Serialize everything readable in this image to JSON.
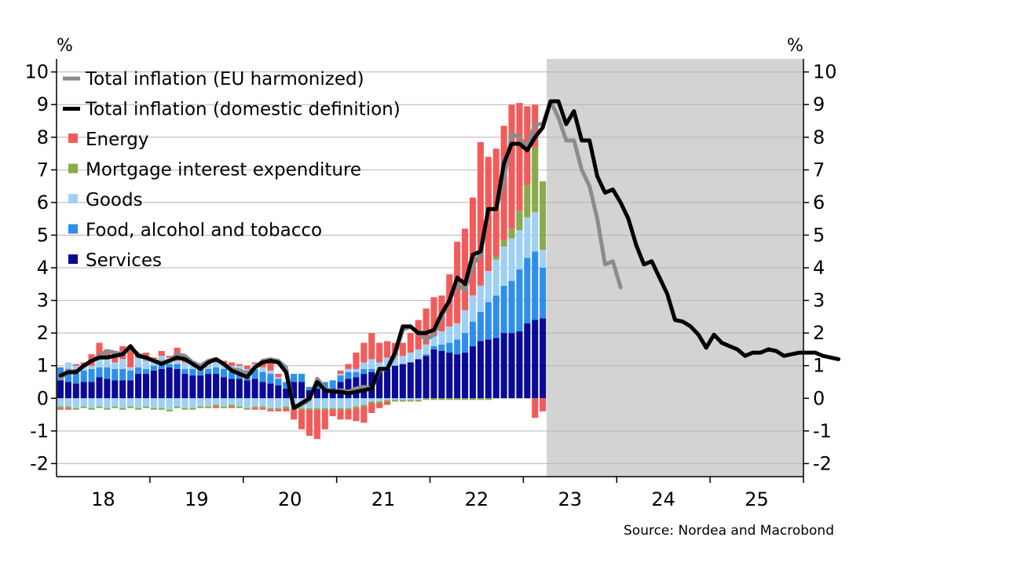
{
  "chart_data": {
    "type": "bar",
    "stacked": true,
    "y_unit_left": "%",
    "y_unit_right": "%",
    "ylim": [
      -2.4,
      10.4
    ],
    "y_ticks": [
      -2,
      -1,
      0,
      1,
      2,
      3,
      4,
      5,
      6,
      7,
      8,
      9,
      10
    ],
    "x_tick_labels": [
      "18",
      "19",
      "20",
      "21",
      "22",
      "23",
      "24",
      "25"
    ],
    "x_range_months": "2018-01 to 2025-12",
    "forecast_shading": {
      "from": "2023-04",
      "to": "2025-12",
      "color": "#d3d3d3"
    },
    "source": "Source: Nordea and Macrobond",
    "legend_position": "top-left",
    "bar_months": "2018-01 to 2023-03 (63 months)",
    "series": [
      {
        "name": "Services",
        "kind": "bar",
        "color": "#0a0a96",
        "values": [
          0.55,
          0.5,
          0.45,
          0.5,
          0.5,
          0.65,
          0.6,
          0.55,
          0.55,
          0.55,
          0.75,
          0.75,
          0.85,
          0.9,
          0.95,
          0.9,
          0.75,
          0.7,
          0.7,
          0.75,
          0.75,
          0.65,
          0.6,
          0.6,
          0.55,
          0.6,
          0.5,
          0.45,
          0.4,
          0.3,
          0.5,
          0.5,
          0.25,
          0.3,
          0.3,
          0.3,
          0.5,
          0.6,
          0.65,
          0.75,
          0.8,
          0.85,
          0.9,
          1.0,
          1.05,
          1.1,
          1.2,
          1.3,
          1.5,
          1.45,
          1.4,
          1.35,
          1.4,
          1.6,
          1.75,
          1.8,
          1.85,
          2.0,
          2.0,
          2.05,
          2.3,
          2.4,
          2.45
        ]
      },
      {
        "name": "Food, alcohol and tobacco",
        "kind": "bar",
        "color": "#2f8fe8",
        "values": [
          0.4,
          0.4,
          0.45,
          0.35,
          0.4,
          0.3,
          0.35,
          0.35,
          0.35,
          0.3,
          0.2,
          0.15,
          0.15,
          0.15,
          0.1,
          0.15,
          0.15,
          0.2,
          0.2,
          0.15,
          0.2,
          0.25,
          0.2,
          0.3,
          0.3,
          0.3,
          0.3,
          0.3,
          0.2,
          0.2,
          0.25,
          0.25,
          0.1,
          0.2,
          0.2,
          0.25,
          0.2,
          0.2,
          0.15,
          0.15,
          0.1,
          0.0,
          0.05,
          0.0,
          0.0,
          0.0,
          0.0,
          0.05,
          0.1,
          0.2,
          0.3,
          0.45,
          0.6,
          0.75,
          0.9,
          1.15,
          1.3,
          1.45,
          1.6,
          1.9,
          2.0,
          2.1,
          1.55
        ]
      },
      {
        "name": "Goods",
        "kind": "bar",
        "color": "#9fd0f5",
        "values": [
          0.0,
          0.2,
          0.1,
          0.1,
          0.1,
          0.3,
          0.35,
          0.2,
          0.3,
          0.1,
          0.3,
          0.25,
          0.2,
          0.25,
          0.2,
          0.1,
          0.2,
          0.2,
          0.15,
          0.15,
          0.15,
          0.1,
          0.2,
          0.1,
          0.05,
          0.15,
          0.15,
          0.1,
          0.05,
          0.0,
          0.0,
          0.0,
          0.0,
          0.0,
          0.0,
          0.0,
          0.05,
          0.1,
          0.1,
          0.2,
          0.3,
          0.25,
          0.3,
          0.3,
          0.25,
          0.3,
          0.3,
          0.3,
          0.3,
          0.4,
          0.5,
          0.5,
          0.7,
          0.8,
          0.8,
          0.95,
          1.1,
          1.2,
          1.3,
          1.2,
          1.25,
          1.2,
          0.55
        ]
      },
      {
        "name": "Mortgage interest expenditure",
        "kind": "bar",
        "color": "#8aaa4e",
        "values": [
          0.0,
          0.0,
          0.0,
          0.0,
          0.0,
          0.0,
          0.0,
          0.0,
          0.0,
          0.0,
          0.0,
          0.0,
          0.0,
          0.0,
          0.0,
          0.0,
          0.0,
          0.0,
          0.0,
          0.0,
          0.0,
          0.0,
          0.0,
          0.0,
          0.0,
          0.0,
          0.0,
          0.0,
          0.0,
          0.0,
          0.0,
          0.0,
          0.0,
          0.0,
          0.0,
          0.0,
          0.0,
          0.0,
          0.0,
          0.0,
          0.0,
          0.0,
          0.0,
          0.0,
          0.0,
          0.0,
          0.0,
          0.0,
          0.0,
          0.0,
          0.0,
          0.0,
          0.0,
          0.0,
          0.0,
          0.0,
          0.1,
          0.2,
          0.3,
          0.6,
          1.0,
          2.0,
          2.1
        ]
      },
      {
        "name": "Energy",
        "kind": "bar",
        "color": "#f35b5b",
        "values": [
          0.0,
          0.0,
          0.05,
          0.15,
          0.35,
          0.45,
          0.2,
          0.35,
          0.4,
          0.65,
          0.1,
          0.25,
          0.05,
          0.15,
          0.05,
          0.4,
          0.2,
          0.05,
          0.0,
          0.05,
          0.1,
          0.15,
          0.1,
          0.05,
          0.1,
          0.05,
          0.1,
          0.25,
          0.1,
          0.0,
          0.0,
          0.0,
          0.0,
          0.0,
          0.0,
          0.0,
          0.1,
          0.15,
          0.5,
          0.6,
          0.8,
          0.6,
          0.5,
          0.4,
          0.4,
          0.6,
          0.9,
          1.1,
          1.2,
          1.1,
          1.6,
          2.5,
          2.5,
          3.0,
          4.4,
          3.5,
          3.3,
          3.5,
          3.8,
          3.3,
          2.4,
          1.3,
          0.0
        ]
      },
      {
        "name": "Services (negative)",
        "kind": "bar",
        "color": "#0a0a96",
        "values": [
          0.0,
          0.0,
          0.0,
          0.0,
          0.0,
          0.0,
          0.0,
          0.0,
          0.0,
          0.0,
          0.0,
          0.0,
          0.0,
          0.0,
          0.0,
          0.0,
          0.0,
          0.0,
          0.0,
          0.0,
          0.0,
          0.0,
          0.0,
          0.0,
          0.0,
          0.0,
          0.0,
          0.0,
          0.0,
          0.0,
          0.0,
          0.0,
          0.0,
          0.0,
          0.0,
          0.0,
          0.0,
          0.0,
          0.0,
          0.0,
          0.0,
          0.0,
          0.0,
          0.0,
          0.0,
          0.0,
          0.0,
          0.0,
          0.0,
          0.0,
          0.0,
          0.0,
          0.0,
          0.0,
          0.0,
          0.0,
          0.0,
          0.0,
          0.0,
          0.0,
          0.0,
          0.0,
          0.0
        ]
      },
      {
        "name": "Goods (negative)",
        "kind": "bar",
        "color": "#9fd0f5",
        "values": [
          -0.25,
          -0.25,
          -0.3,
          -0.25,
          -0.3,
          -0.25,
          -0.3,
          -0.25,
          -0.3,
          -0.25,
          -0.3,
          -0.25,
          -0.3,
          -0.3,
          -0.35,
          -0.25,
          -0.3,
          -0.3,
          -0.25,
          -0.25,
          -0.2,
          -0.25,
          -0.2,
          -0.25,
          -0.3,
          -0.25,
          -0.25,
          -0.3,
          -0.3,
          -0.25,
          -0.3,
          -0.3,
          -0.3,
          -0.3,
          -0.3,
          -0.3,
          -0.3,
          -0.3,
          -0.25,
          -0.2,
          -0.1,
          -0.1,
          -0.05,
          -0.05,
          -0.05,
          -0.05,
          -0.05,
          0.0,
          0.0,
          0.0,
          0.0,
          0.0,
          0.0,
          0.0,
          0.0,
          0.0,
          0.0,
          0.0,
          0.0,
          0.0,
          0.0,
          0.0,
          0.0
        ]
      },
      {
        "name": "Energy (negative)",
        "kind": "bar",
        "color": "#f35b5b",
        "values": [
          -0.05,
          -0.05,
          0.0,
          0.0,
          0.0,
          0.0,
          0.0,
          0.0,
          0.0,
          0.0,
          0.0,
          0.0,
          0.0,
          0.0,
          0.0,
          0.0,
          0.0,
          0.0,
          0.0,
          0.0,
          -0.05,
          0.0,
          -0.05,
          0.0,
          0.0,
          -0.05,
          -0.05,
          -0.05,
          -0.05,
          -0.1,
          -0.3,
          -0.6,
          -0.8,
          -0.9,
          -0.6,
          -0.2,
          -0.3,
          -0.3,
          -0.4,
          -0.5,
          -0.3,
          -0.15,
          -0.1,
          0.0,
          0.0,
          0.0,
          0.0,
          0.0,
          0.0,
          0.0,
          0.0,
          0.0,
          0.0,
          0.0,
          0.0,
          0.0,
          0.0,
          0.0,
          0.0,
          0.0,
          0.0,
          -0.6,
          -0.4
        ]
      },
      {
        "name": "Mortgage interest expenditure (negative)",
        "kind": "bar",
        "color": "#8aaa4e",
        "values": [
          -0.05,
          -0.05,
          -0.05,
          -0.05,
          -0.05,
          -0.05,
          -0.05,
          -0.05,
          -0.05,
          -0.05,
          -0.05,
          -0.05,
          -0.05,
          -0.05,
          -0.05,
          -0.05,
          -0.05,
          -0.05,
          -0.05,
          -0.05,
          -0.05,
          -0.05,
          -0.05,
          -0.05,
          -0.05,
          -0.05,
          -0.05,
          -0.05,
          -0.05,
          -0.05,
          -0.05,
          -0.05,
          -0.05,
          -0.05,
          -0.05,
          -0.05,
          -0.05,
          -0.05,
          -0.05,
          -0.05,
          -0.05,
          -0.05,
          -0.05,
          -0.05,
          -0.05,
          -0.05,
          -0.05,
          -0.05,
          -0.05,
          -0.05,
          -0.05,
          -0.05,
          -0.05,
          -0.05,
          -0.05,
          -0.05,
          0.0,
          0.0,
          0.0,
          0.0,
          0.0,
          0.0,
          0.0
        ]
      },
      {
        "name": "Total inflation (EU harmonized)",
        "kind": "line",
        "color": "#8c8c8c",
        "start_month": "2018-01",
        "values": [
          0.6,
          0.85,
          0.8,
          1.0,
          1.15,
          1.3,
          1.45,
          1.4,
          1.35,
          1.55,
          1.35,
          1.25,
          1.15,
          1.1,
          1.15,
          1.35,
          1.3,
          1.1,
          1.0,
          1.15,
          1.2,
          1.05,
          0.9,
          0.85,
          0.75,
          0.95,
          1.15,
          1.2,
          1.15,
          0.95,
          -0.3,
          -0.2,
          -0.05,
          0.6,
          0.3,
          0.2,
          0.25,
          0.2,
          0.3,
          0.35,
          0.3,
          0.85,
          0.9,
          1.3,
          2.1,
          2.2,
          2.0,
          1.8,
          1.95,
          2.5,
          3.0,
          3.5,
          3.3,
          4.1,
          4.4,
          5.8,
          5.8,
          6.7,
          8.1,
          8.0,
          7.7,
          8.4,
          8.4,
          9.1,
          8.6,
          7.9,
          7.9,
          7.0,
          6.5,
          5.5,
          4.1,
          4.2,
          3.4
        ]
      },
      {
        "name": "Total inflation (domestic definition)",
        "kind": "line",
        "color": "#000000",
        "start_month": "2018-01",
        "values": [
          0.7,
          0.8,
          0.8,
          1.0,
          1.15,
          1.25,
          1.25,
          1.3,
          1.35,
          1.6,
          1.3,
          1.25,
          1.15,
          1.05,
          1.15,
          1.25,
          1.2,
          1.05,
          0.9,
          1.1,
          1.2,
          1.05,
          0.85,
          0.75,
          0.65,
          0.95,
          1.1,
          1.15,
          1.1,
          0.8,
          -0.3,
          -0.15,
          0.0,
          0.5,
          0.25,
          0.2,
          0.2,
          0.15,
          0.2,
          0.25,
          0.3,
          0.9,
          0.9,
          1.4,
          2.2,
          2.2,
          2.0,
          2.0,
          2.1,
          2.6,
          3.0,
          3.7,
          3.5,
          4.4,
          4.5,
          5.8,
          5.8,
          7.2,
          7.8,
          7.8,
          7.6,
          8.0,
          8.3,
          9.1,
          9.1,
          8.4,
          8.8,
          7.9,
          7.9,
          6.8,
          6.3,
          6.4,
          6.0,
          5.5,
          4.7,
          4.1,
          4.2,
          3.7,
          3.2,
          2.4,
          2.35,
          2.2,
          1.95,
          1.55,
          1.95,
          1.7,
          1.6,
          1.5,
          1.3,
          1.4,
          1.4,
          1.5,
          1.45,
          1.3,
          1.35,
          1.4,
          1.4,
          1.4,
          1.3,
          1.25,
          1.2
        ]
      }
    ],
    "legend": [
      {
        "name": "Total inflation (EU harmonized)",
        "marker": "line",
        "color": "#8c8c8c"
      },
      {
        "name": "Total inflation (domestic definition)",
        "marker": "line",
        "color": "#000000"
      },
      {
        "name": "Energy",
        "marker": "square",
        "color": "#f35b5b"
      },
      {
        "name": "Mortgage interest expenditure",
        "marker": "square",
        "color": "#8aaa4e"
      },
      {
        "name": "Goods",
        "marker": "square",
        "color": "#9fd0f5"
      },
      {
        "name": "Food, alcohol and tobacco",
        "marker": "square",
        "color": "#2f8fe8"
      },
      {
        "name": "Services",
        "marker": "square",
        "color": "#0a0a96"
      }
    ],
    "grid": "horizontal",
    "gridline_color": "#b4b4b4"
  }
}
